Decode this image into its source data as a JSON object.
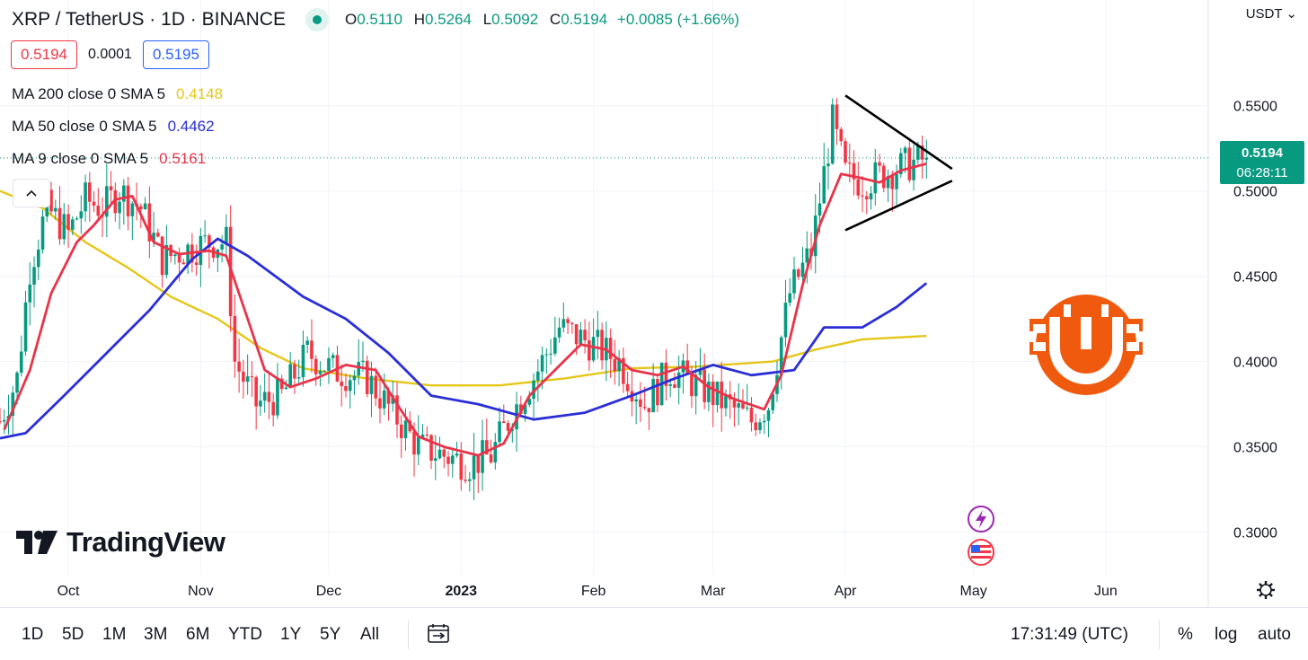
{
  "header": {
    "symbol": "XRP / TetherUS · 1D · BINANCE",
    "open_label": "O",
    "open": "0.5110",
    "high_label": "H",
    "high": "0.5264",
    "low_label": "L",
    "low": "0.5092",
    "close_label": "C",
    "close": "0.5194",
    "change": "+0.0085 (+1.66%)"
  },
  "trade": {
    "sell": "0.5194",
    "spread": "0.0001",
    "buy": "0.5195"
  },
  "indicators": [
    {
      "label": "MA 200 close 0 SMA 5",
      "value": "0.4148",
      "color": "#e6c619"
    },
    {
      "label": "MA 50 close 0 SMA 5",
      "value": "0.4462",
      "color": "#2a2ed6"
    },
    {
      "label": "MA 9 close 0 SMA 5",
      "value": "0.5161",
      "color": "#e8344a"
    }
  ],
  "currency": "USDT",
  "last_price": {
    "value": "0.5194",
    "countdown": "06:28:11"
  },
  "timeframes": [
    "1D",
    "5D",
    "1M",
    "3M",
    "6M",
    "YTD",
    "1Y",
    "5Y",
    "All"
  ],
  "clock": "17:31:49 (UTC)",
  "toggles": {
    "percent": "%",
    "log": "log",
    "auto": "auto"
  },
  "logo_text": "TradingView",
  "icons": {
    "collapse": "chevron-up-icon",
    "compare": "calendar-range-icon",
    "settings": "gear-icon",
    "flash": "lightning-icon",
    "flag": "us-flag-icon",
    "brand": "bitcoin-logo-icon"
  },
  "colors": {
    "up": "#089981",
    "down": "#f23645",
    "brand": "#f05a0f"
  },
  "chart_data": {
    "type": "candlestick",
    "title": "XRP / TetherUS · 1D · BINANCE",
    "y_ticks": [
      0.3,
      0.35,
      0.4,
      0.45,
      0.5,
      0.55
    ],
    "y_tick_labels": [
      "0.3000",
      "0.3500",
      "0.4000",
      "0.4500",
      "0.5000",
      "0.5500"
    ],
    "ylim": [
      0.275,
      0.612
    ],
    "x_tick_labels": [
      "Oct",
      "Nov",
      "Dec",
      "2023",
      "Feb",
      "Mar",
      "Apr",
      "May",
      "Jun"
    ],
    "x_tick_dates": [
      "2022-10-01",
      "2022-11-01",
      "2022-12-01",
      "2023-01-01",
      "2023-02-01",
      "2023-03-01",
      "2023-04-01",
      "2023-05-01",
      "2023-06-01"
    ],
    "xlim": [
      "2022-09-15",
      "2023-06-25"
    ],
    "candles_first_date": "2022-09-15",
    "candles_last_date": "2023-04-20",
    "close_path": [
      {
        "date": "2022-09-15",
        "value": 0.365
      },
      {
        "date": "2022-09-19",
        "value": 0.39
      },
      {
        "date": "2022-09-22",
        "value": 0.455
      },
      {
        "date": "2022-09-26",
        "value": 0.49
      },
      {
        "date": "2022-10-01",
        "value": 0.475
      },
      {
        "date": "2022-10-05",
        "value": 0.495
      },
      {
        "date": "2022-10-09",
        "value": 0.49
      },
      {
        "date": "2022-10-13",
        "value": 0.5
      },
      {
        "date": "2022-10-18",
        "value": 0.49
      },
      {
        "date": "2022-10-23",
        "value": 0.46
      },
      {
        "date": "2022-10-28",
        "value": 0.465
      },
      {
        "date": "2022-11-03",
        "value": 0.47
      },
      {
        "date": "2022-11-07",
        "value": 0.47
      },
      {
        "date": "2022-11-09",
        "value": 0.4
      },
      {
        "date": "2022-11-14",
        "value": 0.375
      },
      {
        "date": "2022-11-20",
        "value": 0.38
      },
      {
        "date": "2022-11-26",
        "value": 0.405
      },
      {
        "date": "2022-12-02",
        "value": 0.395
      },
      {
        "date": "2022-12-10",
        "value": 0.39
      },
      {
        "date": "2022-12-16",
        "value": 0.37
      },
      {
        "date": "2022-12-22",
        "value": 0.35
      },
      {
        "date": "2022-12-28",
        "value": 0.345
      },
      {
        "date": "2023-01-03",
        "value": 0.34
      },
      {
        "date": "2023-01-08",
        "value": 0.345
      },
      {
        "date": "2023-01-13",
        "value": 0.37
      },
      {
        "date": "2023-01-19",
        "value": 0.395
      },
      {
        "date": "2023-01-24",
        "value": 0.42
      },
      {
        "date": "2023-02-01",
        "value": 0.41
      },
      {
        "date": "2023-02-07",
        "value": 0.4
      },
      {
        "date": "2023-02-13",
        "value": 0.375
      },
      {
        "date": "2023-02-19",
        "value": 0.395
      },
      {
        "date": "2023-02-26",
        "value": 0.385
      },
      {
        "date": "2023-03-04",
        "value": 0.375
      },
      {
        "date": "2023-03-10",
        "value": 0.365
      },
      {
        "date": "2023-03-14",
        "value": 0.375
      },
      {
        "date": "2023-03-19",
        "value": 0.44
      },
      {
        "date": "2023-03-24",
        "value": 0.465
      },
      {
        "date": "2023-03-29",
        "value": 0.54
      },
      {
        "date": "2023-04-01",
        "value": 0.51
      },
      {
        "date": "2023-04-05",
        "value": 0.505
      },
      {
        "date": "2023-04-10",
        "value": 0.51
      },
      {
        "date": "2023-04-15",
        "value": 0.515
      },
      {
        "date": "2023-04-20",
        "value": 0.519
      }
    ],
    "series": [
      {
        "name": "MA 9 close 0 SMA 5",
        "color": "#e8344a",
        "points": [
          {
            "date": "2022-09-16",
            "value": 0.36
          },
          {
            "date": "2022-09-22",
            "value": 0.395
          },
          {
            "date": "2022-09-27",
            "value": 0.44
          },
          {
            "date": "2022-10-03",
            "value": 0.47
          },
          {
            "date": "2022-10-07",
            "value": 0.48
          },
          {
            "date": "2022-10-12",
            "value": 0.495
          },
          {
            "date": "2022-10-16",
            "value": 0.497
          },
          {
            "date": "2022-10-21",
            "value": 0.47
          },
          {
            "date": "2022-10-27",
            "value": 0.463
          },
          {
            "date": "2022-11-03",
            "value": 0.465
          },
          {
            "date": "2022-11-07",
            "value": 0.462
          },
          {
            "date": "2022-11-12",
            "value": 0.425
          },
          {
            "date": "2022-11-16",
            "value": 0.395
          },
          {
            "date": "2022-11-22",
            "value": 0.385
          },
          {
            "date": "2022-11-28",
            "value": 0.39
          },
          {
            "date": "2022-12-05",
            "value": 0.398
          },
          {
            "date": "2022-12-12",
            "value": 0.395
          },
          {
            "date": "2022-12-17",
            "value": 0.375
          },
          {
            "date": "2022-12-22",
            "value": 0.356
          },
          {
            "date": "2022-12-28",
            "value": 0.35
          },
          {
            "date": "2023-01-05",
            "value": 0.345
          },
          {
            "date": "2023-01-11",
            "value": 0.352
          },
          {
            "date": "2023-01-17",
            "value": 0.38
          },
          {
            "date": "2023-01-23",
            "value": 0.395
          },
          {
            "date": "2023-01-29",
            "value": 0.41
          },
          {
            "date": "2023-02-04",
            "value": 0.407
          },
          {
            "date": "2023-02-10",
            "value": 0.395
          },
          {
            "date": "2023-02-16",
            "value": 0.392
          },
          {
            "date": "2023-02-22",
            "value": 0.397
          },
          {
            "date": "2023-02-28",
            "value": 0.385
          },
          {
            "date": "2023-03-06",
            "value": 0.378
          },
          {
            "date": "2023-03-13",
            "value": 0.372
          },
          {
            "date": "2023-03-17",
            "value": 0.392
          },
          {
            "date": "2023-03-22",
            "value": 0.445
          },
          {
            "date": "2023-03-26",
            "value": 0.48
          },
          {
            "date": "2023-03-31",
            "value": 0.51
          },
          {
            "date": "2023-04-04",
            "value": 0.508
          },
          {
            "date": "2023-04-09",
            "value": 0.505
          },
          {
            "date": "2023-04-14",
            "value": 0.512
          },
          {
            "date": "2023-04-20",
            "value": 0.516
          }
        ]
      },
      {
        "name": "MA 50 close 0 SMA 5",
        "color": "#2a2ed6",
        "points": [
          {
            "date": "2022-09-15",
            "value": 0.355
          },
          {
            "date": "2022-09-21",
            "value": 0.358
          },
          {
            "date": "2022-09-30",
            "value": 0.38
          },
          {
            "date": "2022-10-10",
            "value": 0.405
          },
          {
            "date": "2022-10-20",
            "value": 0.43
          },
          {
            "date": "2022-10-30",
            "value": 0.46
          },
          {
            "date": "2022-11-05",
            "value": 0.472
          },
          {
            "date": "2022-11-12",
            "value": 0.462
          },
          {
            "date": "2022-11-25",
            "value": 0.438
          },
          {
            "date": "2022-12-05",
            "value": 0.425
          },
          {
            "date": "2022-12-15",
            "value": 0.405
          },
          {
            "date": "2022-12-25",
            "value": 0.38
          },
          {
            "date": "2023-01-05",
            "value": 0.375
          },
          {
            "date": "2023-01-18",
            "value": 0.366
          },
          {
            "date": "2023-01-30",
            "value": 0.37
          },
          {
            "date": "2023-02-10",
            "value": 0.38
          },
          {
            "date": "2023-02-20",
            "value": 0.39
          },
          {
            "date": "2023-03-01",
            "value": 0.398
          },
          {
            "date": "2023-03-10",
            "value": 0.392
          },
          {
            "date": "2023-03-20",
            "value": 0.395
          },
          {
            "date": "2023-03-27",
            "value": 0.42
          },
          {
            "date": "2023-04-05",
            "value": 0.42
          },
          {
            "date": "2023-04-13",
            "value": 0.432
          },
          {
            "date": "2023-04-20",
            "value": 0.446
          }
        ]
      },
      {
        "name": "MA 200 close 0 SMA 5",
        "color": "#e6c619",
        "points": [
          {
            "date": "2022-09-15",
            "value": 0.5
          },
          {
            "date": "2022-09-25",
            "value": 0.49
          },
          {
            "date": "2022-10-05",
            "value": 0.47
          },
          {
            "date": "2022-10-15",
            "value": 0.455
          },
          {
            "date": "2022-10-25",
            "value": 0.438
          },
          {
            "date": "2022-11-05",
            "value": 0.425
          },
          {
            "date": "2022-11-15",
            "value": 0.408
          },
          {
            "date": "2022-11-25",
            "value": 0.396
          },
          {
            "date": "2022-12-10",
            "value": 0.39
          },
          {
            "date": "2022-12-25",
            "value": 0.386
          },
          {
            "date": "2023-01-10",
            "value": 0.386
          },
          {
            "date": "2023-01-25",
            "value": 0.39
          },
          {
            "date": "2023-02-10",
            "value": 0.396
          },
          {
            "date": "2023-02-25",
            "value": 0.397
          },
          {
            "date": "2023-03-15",
            "value": 0.4
          },
          {
            "date": "2023-03-25",
            "value": 0.407
          },
          {
            "date": "2023-04-05",
            "value": 0.413
          },
          {
            "date": "2023-04-20",
            "value": 0.415
          }
        ]
      }
    ],
    "annotations": [
      {
        "type": "triangle-pattern",
        "points": [
          {
            "date": "2023-04-01",
            "value": 0.556
          },
          {
            "date": "2023-04-26",
            "value": 0.513
          },
          {
            "date": "2023-04-01",
            "value": 0.477
          },
          {
            "date": "2023-04-26",
            "value": 0.506
          }
        ]
      }
    ],
    "last_value": 0.5194,
    "grid": true
  }
}
